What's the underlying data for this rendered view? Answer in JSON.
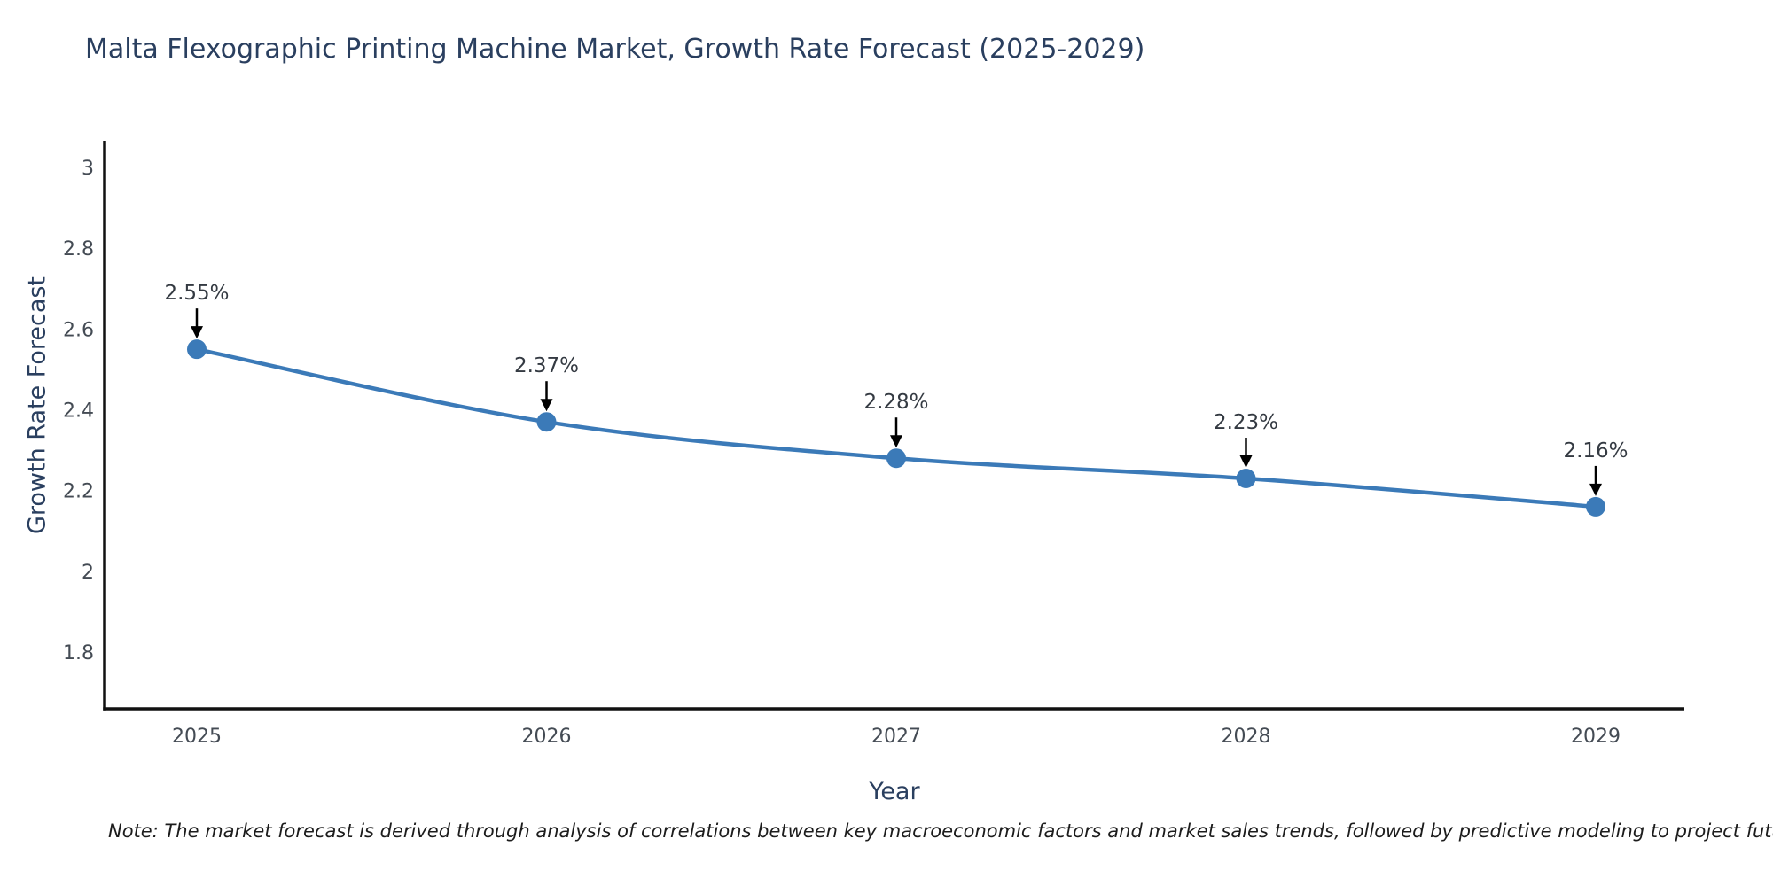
{
  "chart_data": {
    "type": "line",
    "title": "Malta Flexographic Printing Machine Market, Growth Rate Forecast (2025-2029)",
    "xlabel": "Year",
    "ylabel": "Growth Rate Forecast",
    "categories": [
      "2025",
      "2026",
      "2027",
      "2028",
      "2029"
    ],
    "series": [
      {
        "name": "Growth Rate Forecast",
        "values": [
          2.55,
          2.37,
          2.28,
          2.23,
          2.16
        ],
        "point_labels": [
          "2.55%",
          "2.37%",
          "2.28%",
          "2.23%",
          "2.16%"
        ]
      }
    ],
    "y_ticks": [
      {
        "v": 3.0,
        "label": "3"
      },
      {
        "v": 2.8,
        "label": "2.8"
      },
      {
        "v": 2.6,
        "label": "2.6"
      },
      {
        "v": 2.4,
        "label": "2.4"
      },
      {
        "v": 2.2,
        "label": "2.2"
      },
      {
        "v": 2.0,
        "label": "2"
      },
      {
        "v": 1.8,
        "label": "1.8"
      }
    ],
    "ylim": [
      1.66,
      3.06
    ],
    "grid": false,
    "legend": "none",
    "marker_style": "circle-with-down-arrow-annotation",
    "colors": {
      "line": "#3b7ab8",
      "marker": "#3b7ab8",
      "annotation_text": "#343a42",
      "arrow": "#000000",
      "axis": "#111111",
      "tick_label": "#444b54",
      "title": "#2a3f5f"
    },
    "note": "Note: The market forecast is derived through analysis of correlations between key macroeconomic factors and market sales trends, followed by predictive modeling to project future sales"
  }
}
